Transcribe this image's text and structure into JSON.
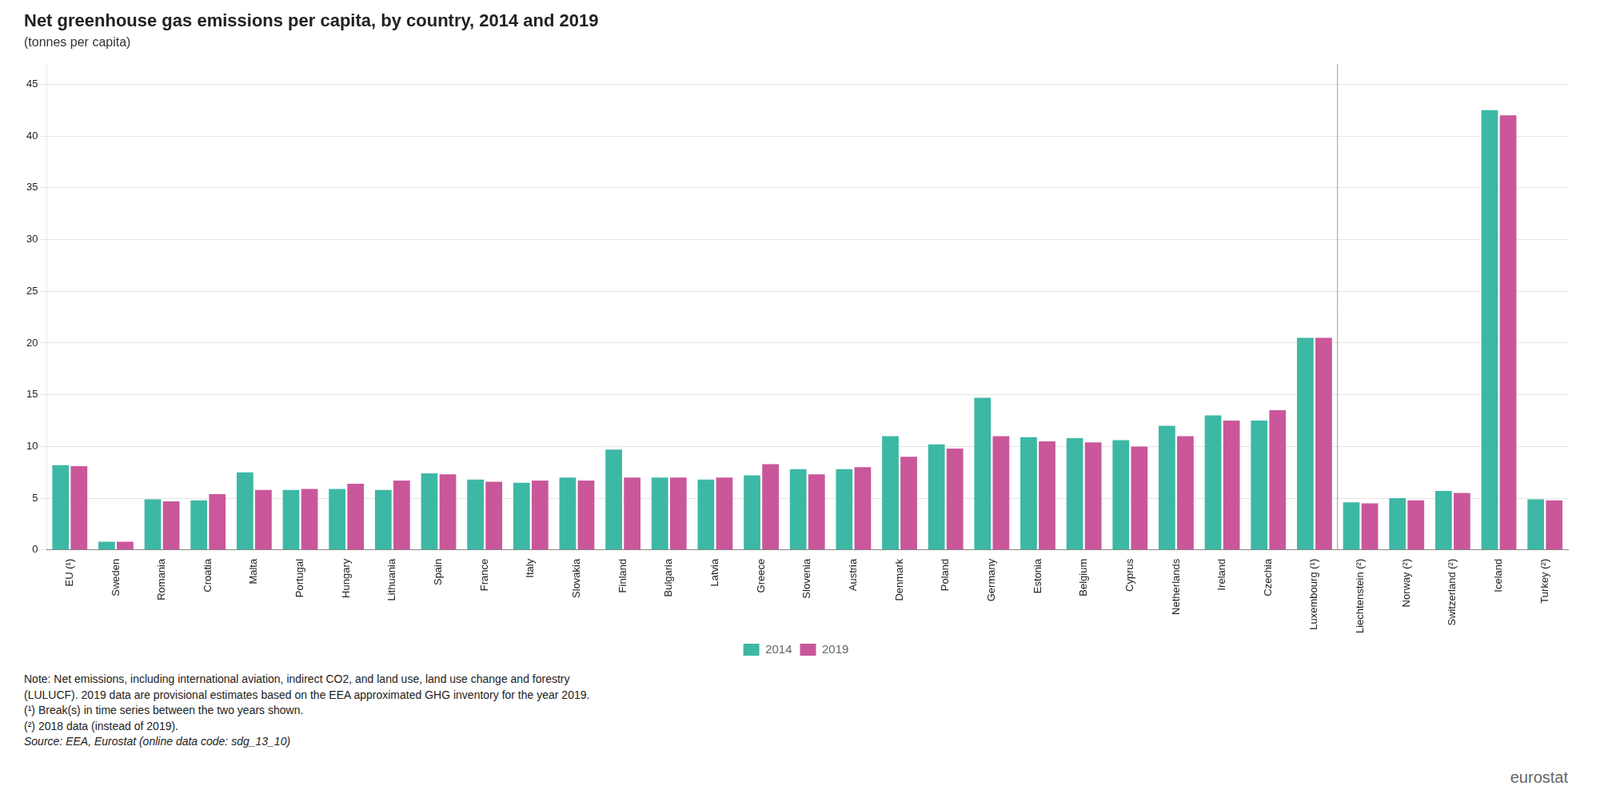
{
  "chart_data": {
    "type": "bar",
    "title": "Net greenhouse gas emissions per capita, by country, 2014 and 2019",
    "subtitle": "(tonnes per capita)",
    "categories": [
      "EU (¹)",
      "Sweden",
      "Romania",
      "Croatia",
      "Malta",
      "Portugal",
      "Hungary",
      "Lithuania",
      "Spain",
      "France",
      "Italy",
      "Slovakia",
      "Finland",
      "Bulgaria",
      "Latvia",
      "Greece",
      "Slovenia",
      "Austria",
      "Denmark",
      "Poland",
      "Germany",
      "Estonia",
      "Belgium",
      "Cyprus",
      "Netherlands",
      "Ireland",
      "Czechia",
      "Luxembourg (¹)",
      "Liechtenstein (²)",
      "Norway (²)",
      "Switzerland (²)",
      "Iceland",
      "Turkey (²)"
    ],
    "series": [
      {
        "name": "2014",
        "color": "#3db8a5",
        "values": [
          8.2,
          0.8,
          4.9,
          4.8,
          7.5,
          5.8,
          5.9,
          5.8,
          7.4,
          6.8,
          6.5,
          7.0,
          9.7,
          7.0,
          6.8,
          7.2,
          7.8,
          7.8,
          11.0,
          10.2,
          14.7,
          10.9,
          10.8,
          10.6,
          12.0,
          13.0,
          12.5,
          20.5,
          4.6,
          5.0,
          5.7,
          42.5,
          4.9
        ]
      },
      {
        "name": "2019",
        "color": "#c9579a",
        "values": [
          8.1,
          0.8,
          4.7,
          5.4,
          5.8,
          5.9,
          6.4,
          6.7,
          7.3,
          6.6,
          6.7,
          6.7,
          7.0,
          7.0,
          7.0,
          8.3,
          7.3,
          8.0,
          9.0,
          9.8,
          11.0,
          10.5,
          10.4,
          10.0,
          11.0,
          12.5,
          13.5,
          20.5,
          4.5,
          4.8,
          5.5,
          42.0,
          4.8
        ]
      }
    ],
    "ylim": [
      0,
      47
    ],
    "yticks": [
      0,
      5,
      10,
      15,
      20,
      25,
      30,
      35,
      40,
      45
    ],
    "grid": true,
    "legend": "bottom",
    "separator_after": "Luxembourg (¹)",
    "notes": [
      "Note: Net emissions, including international aviation, indirect CO2, and land use, land use change and forestry",
      "(LULUCF). 2019 data are provisional estimates based on the EEA approximated GHG inventory for the year 2019.",
      "(¹) Break(s) in time series between the two years shown.",
      "(²) 2018 data (instead of 2019)."
    ],
    "source": "Source: EEA, Eurostat (online data code: sdg_13_10)",
    "logo": "eurostat"
  }
}
